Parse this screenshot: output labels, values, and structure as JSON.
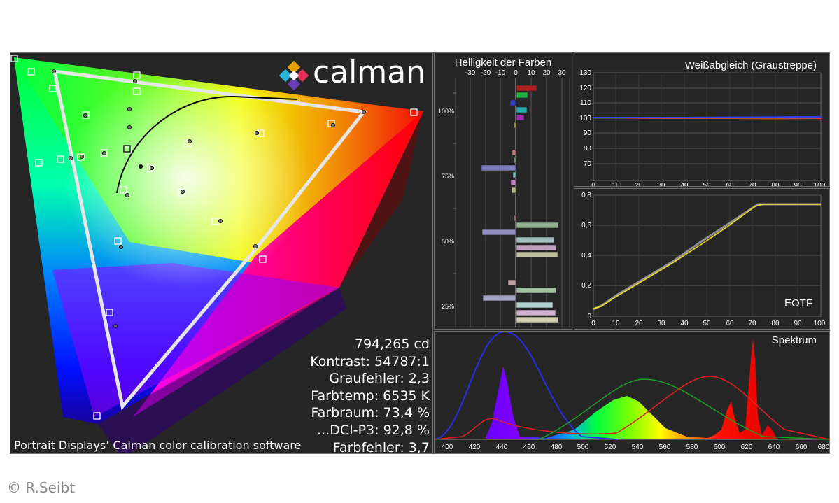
{
  "logo": {
    "text": "calman"
  },
  "copyright": "© R.Seibt",
  "caption": "Portrait Displays’ Calman color calibration software",
  "stats": [
    "794,265 cd",
    "Kontrast: 54787:1",
    "Graufehler: 2,3",
    "Farbtemp: 6535 K",
    "Farbraum: 73,4 %",
    "...DCI-P3: 92,8 %",
    "Farbfehler: 3,7"
  ],
  "luminance_panel": {
    "title": "Helligkeit der Farben",
    "x_ticks": [
      "-30",
      "-20",
      "-10",
      "0",
      "10",
      "20",
      "30"
    ],
    "y_labels": [
      "100%",
      "75%",
      "50%",
      "25%"
    ],
    "colors": {
      "red": "#c0392b",
      "green": "#22b14c",
      "blue": "#3b4fd1",
      "cyan": "#2bb7b7",
      "magenta": "#b03ab0",
      "yellow": "#d8c92b"
    }
  },
  "whitebalance_panel": {
    "title": "Weißabgleich (Graustreppe)",
    "y_ticks": [
      "130",
      "120",
      "110",
      "100",
      "90",
      "80",
      "70"
    ],
    "x_ticks": [
      "0",
      "10",
      "20",
      "30",
      "40",
      "50",
      "60",
      "70",
      "80",
      "90",
      "100"
    ]
  },
  "eotf_panel": {
    "title": "EOTF",
    "y_ticks": [
      "0,8",
      "0,6",
      "0,4",
      "0,2",
      "0"
    ],
    "x_ticks": [
      "0",
      "10",
      "20",
      "30",
      "40",
      "50",
      "60",
      "70",
      "80",
      "90",
      "100"
    ]
  },
  "spectrum_panel": {
    "title": "Spektrum",
    "x_ticks": [
      "400",
      "420",
      "440",
      "460",
      "480",
      "500",
      "520",
      "540",
      "560",
      "580",
      "600",
      "620",
      "640",
      "660",
      "680"
    ]
  }
}
